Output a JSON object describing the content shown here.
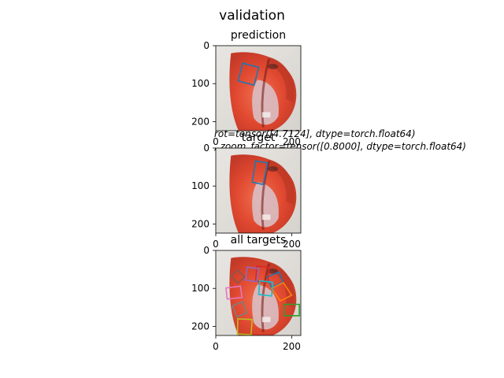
{
  "figure": {
    "suptitle": "validation"
  },
  "chart_data": [
    {
      "type": "image",
      "title": "prediction",
      "xlim": [
        0,
        224
      ],
      "ylim": [
        224,
        0
      ],
      "xticks": [
        0,
        200
      ],
      "yticks": [
        0,
        100,
        200
      ],
      "boxes": [
        {
          "color": "#1f77b4",
          "corners": [
            [
              71,
              46
            ],
            [
              113,
              57
            ],
            [
              101,
              104
            ],
            [
              59,
              93
            ]
          ]
        }
      ],
      "annotation": [
        "rot=tensor([4.7124], dtype=torch.float64)",
        ", zoom_factor=tensor([0.8000], dtype=torch.float64)"
      ]
    },
    {
      "type": "image",
      "title": "target",
      "xlim": [
        0,
        224
      ],
      "ylim": [
        224,
        0
      ],
      "xticks": [
        0,
        200
      ],
      "yticks": [
        0,
        100,
        200
      ],
      "boxes": [
        {
          "color": "#1f77b4",
          "corners": [
            [
              105,
              34
            ],
            [
              136,
              39
            ],
            [
              125,
              96
            ],
            [
              96,
              90
            ]
          ]
        }
      ]
    },
    {
      "type": "image",
      "title": "all targets",
      "xlim": [
        0,
        224
      ],
      "ylim": [
        224,
        0
      ],
      "xticks": [
        0,
        200
      ],
      "yticks": [
        0,
        100,
        200
      ],
      "boxes": [
        {
          "color": "#1f77b4",
          "corners": [
            [
              135,
              70
            ],
            [
              167,
              57
            ],
            [
              177,
              84
            ],
            [
              147,
              97
            ]
          ]
        },
        {
          "color": "#ff7f0e",
          "corners": [
            [
              147,
              100
            ],
            [
              178,
              85
            ],
            [
              200,
              118
            ],
            [
              170,
              133
            ]
          ]
        },
        {
          "color": "#2ca02c",
          "corners": [
            [
              180,
              142
            ],
            [
              220,
              142
            ],
            [
              220,
              172
            ],
            [
              180,
              172
            ]
          ]
        },
        {
          "color": "#d62728",
          "corners": [
            [
              108,
              41
            ],
            [
              140,
              44
            ],
            [
              137,
              84
            ],
            [
              105,
              81
            ]
          ]
        },
        {
          "color": "#9467bd",
          "corners": [
            [
              83,
              44
            ],
            [
              113,
              48
            ],
            [
              108,
              82
            ],
            [
              78,
              78
            ]
          ]
        },
        {
          "color": "#8c564b",
          "corners": [
            [
              40,
              68
            ],
            [
              58,
              52
            ],
            [
              76,
              70
            ],
            [
              58,
              86
            ]
          ]
        },
        {
          "color": "#e377c2",
          "corners": [
            [
              27,
              99
            ],
            [
              65,
              94
            ],
            [
              69,
              124
            ],
            [
              30,
              128
            ]
          ]
        },
        {
          "color": "#7f7f7f",
          "corners": [
            [
              44,
              146
            ],
            [
              70,
              135
            ],
            [
              82,
              164
            ],
            [
              56,
              175
            ]
          ]
        },
        {
          "color": "#bcbd22",
          "corners": [
            [
              58,
              180
            ],
            [
              96,
              182
            ],
            [
              93,
              222
            ],
            [
              57,
              220
            ]
          ]
        },
        {
          "color": "#17becf",
          "corners": [
            [
              116,
              80
            ],
            [
              150,
              84
            ],
            [
              147,
              120
            ],
            [
              113,
              116
            ]
          ]
        }
      ]
    }
  ]
}
